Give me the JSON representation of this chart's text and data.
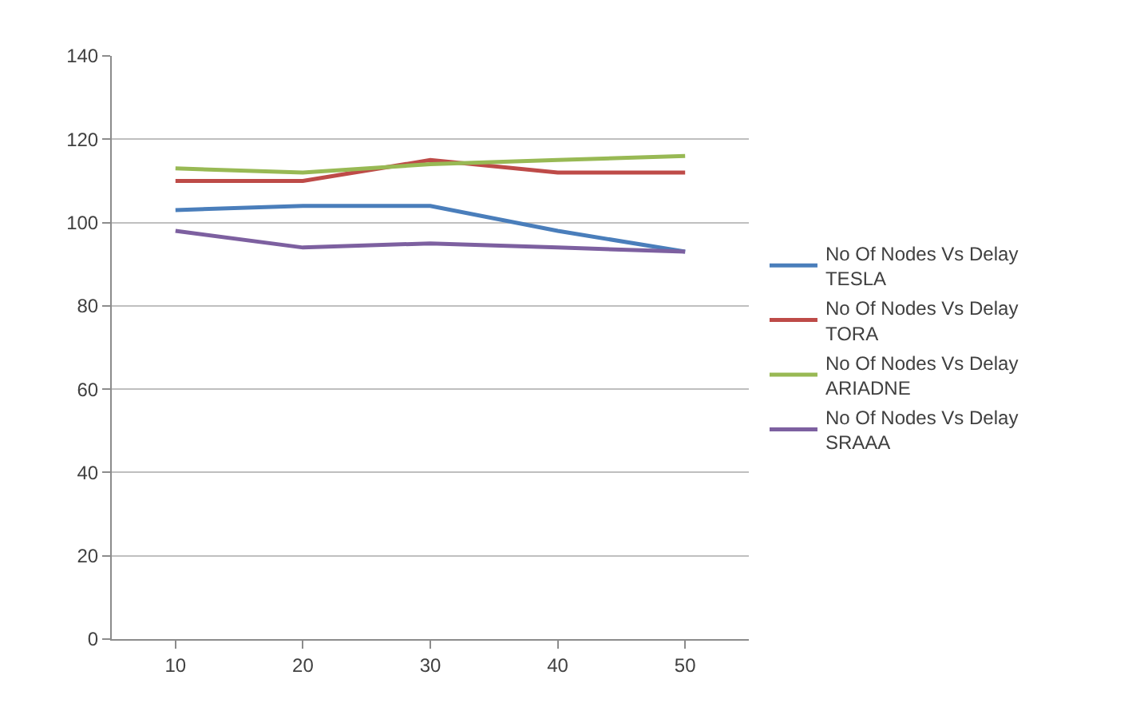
{
  "chart_data": {
    "type": "line",
    "categories": [
      "10",
      "20",
      "30",
      "40",
      "50"
    ],
    "series": [
      {
        "name": "No Of Nodes Vs Delay TESLA",
        "color": "#4a7ebb",
        "values": [
          103,
          104,
          104,
          98,
          93
        ]
      },
      {
        "name": "No Of Nodes Vs Delay TORA",
        "color": "#be4b48",
        "values": [
          110,
          110,
          115,
          112,
          112
        ]
      },
      {
        "name": "No Of Nodes Vs Delay ARIADNE",
        "color": "#98b954",
        "values": [
          113,
          112,
          114,
          115,
          116
        ]
      },
      {
        "name": "No Of Nodes Vs Delay SRAAA",
        "color": "#7d60a0",
        "values": [
          98,
          94,
          95,
          94,
          93
        ]
      }
    ],
    "ylim": [
      0,
      140
    ],
    "yticks": [
      0,
      20,
      40,
      60,
      80,
      100,
      120,
      140
    ],
    "grid": "y",
    "legend": "right",
    "marker": "none",
    "line_style": "solid"
  }
}
